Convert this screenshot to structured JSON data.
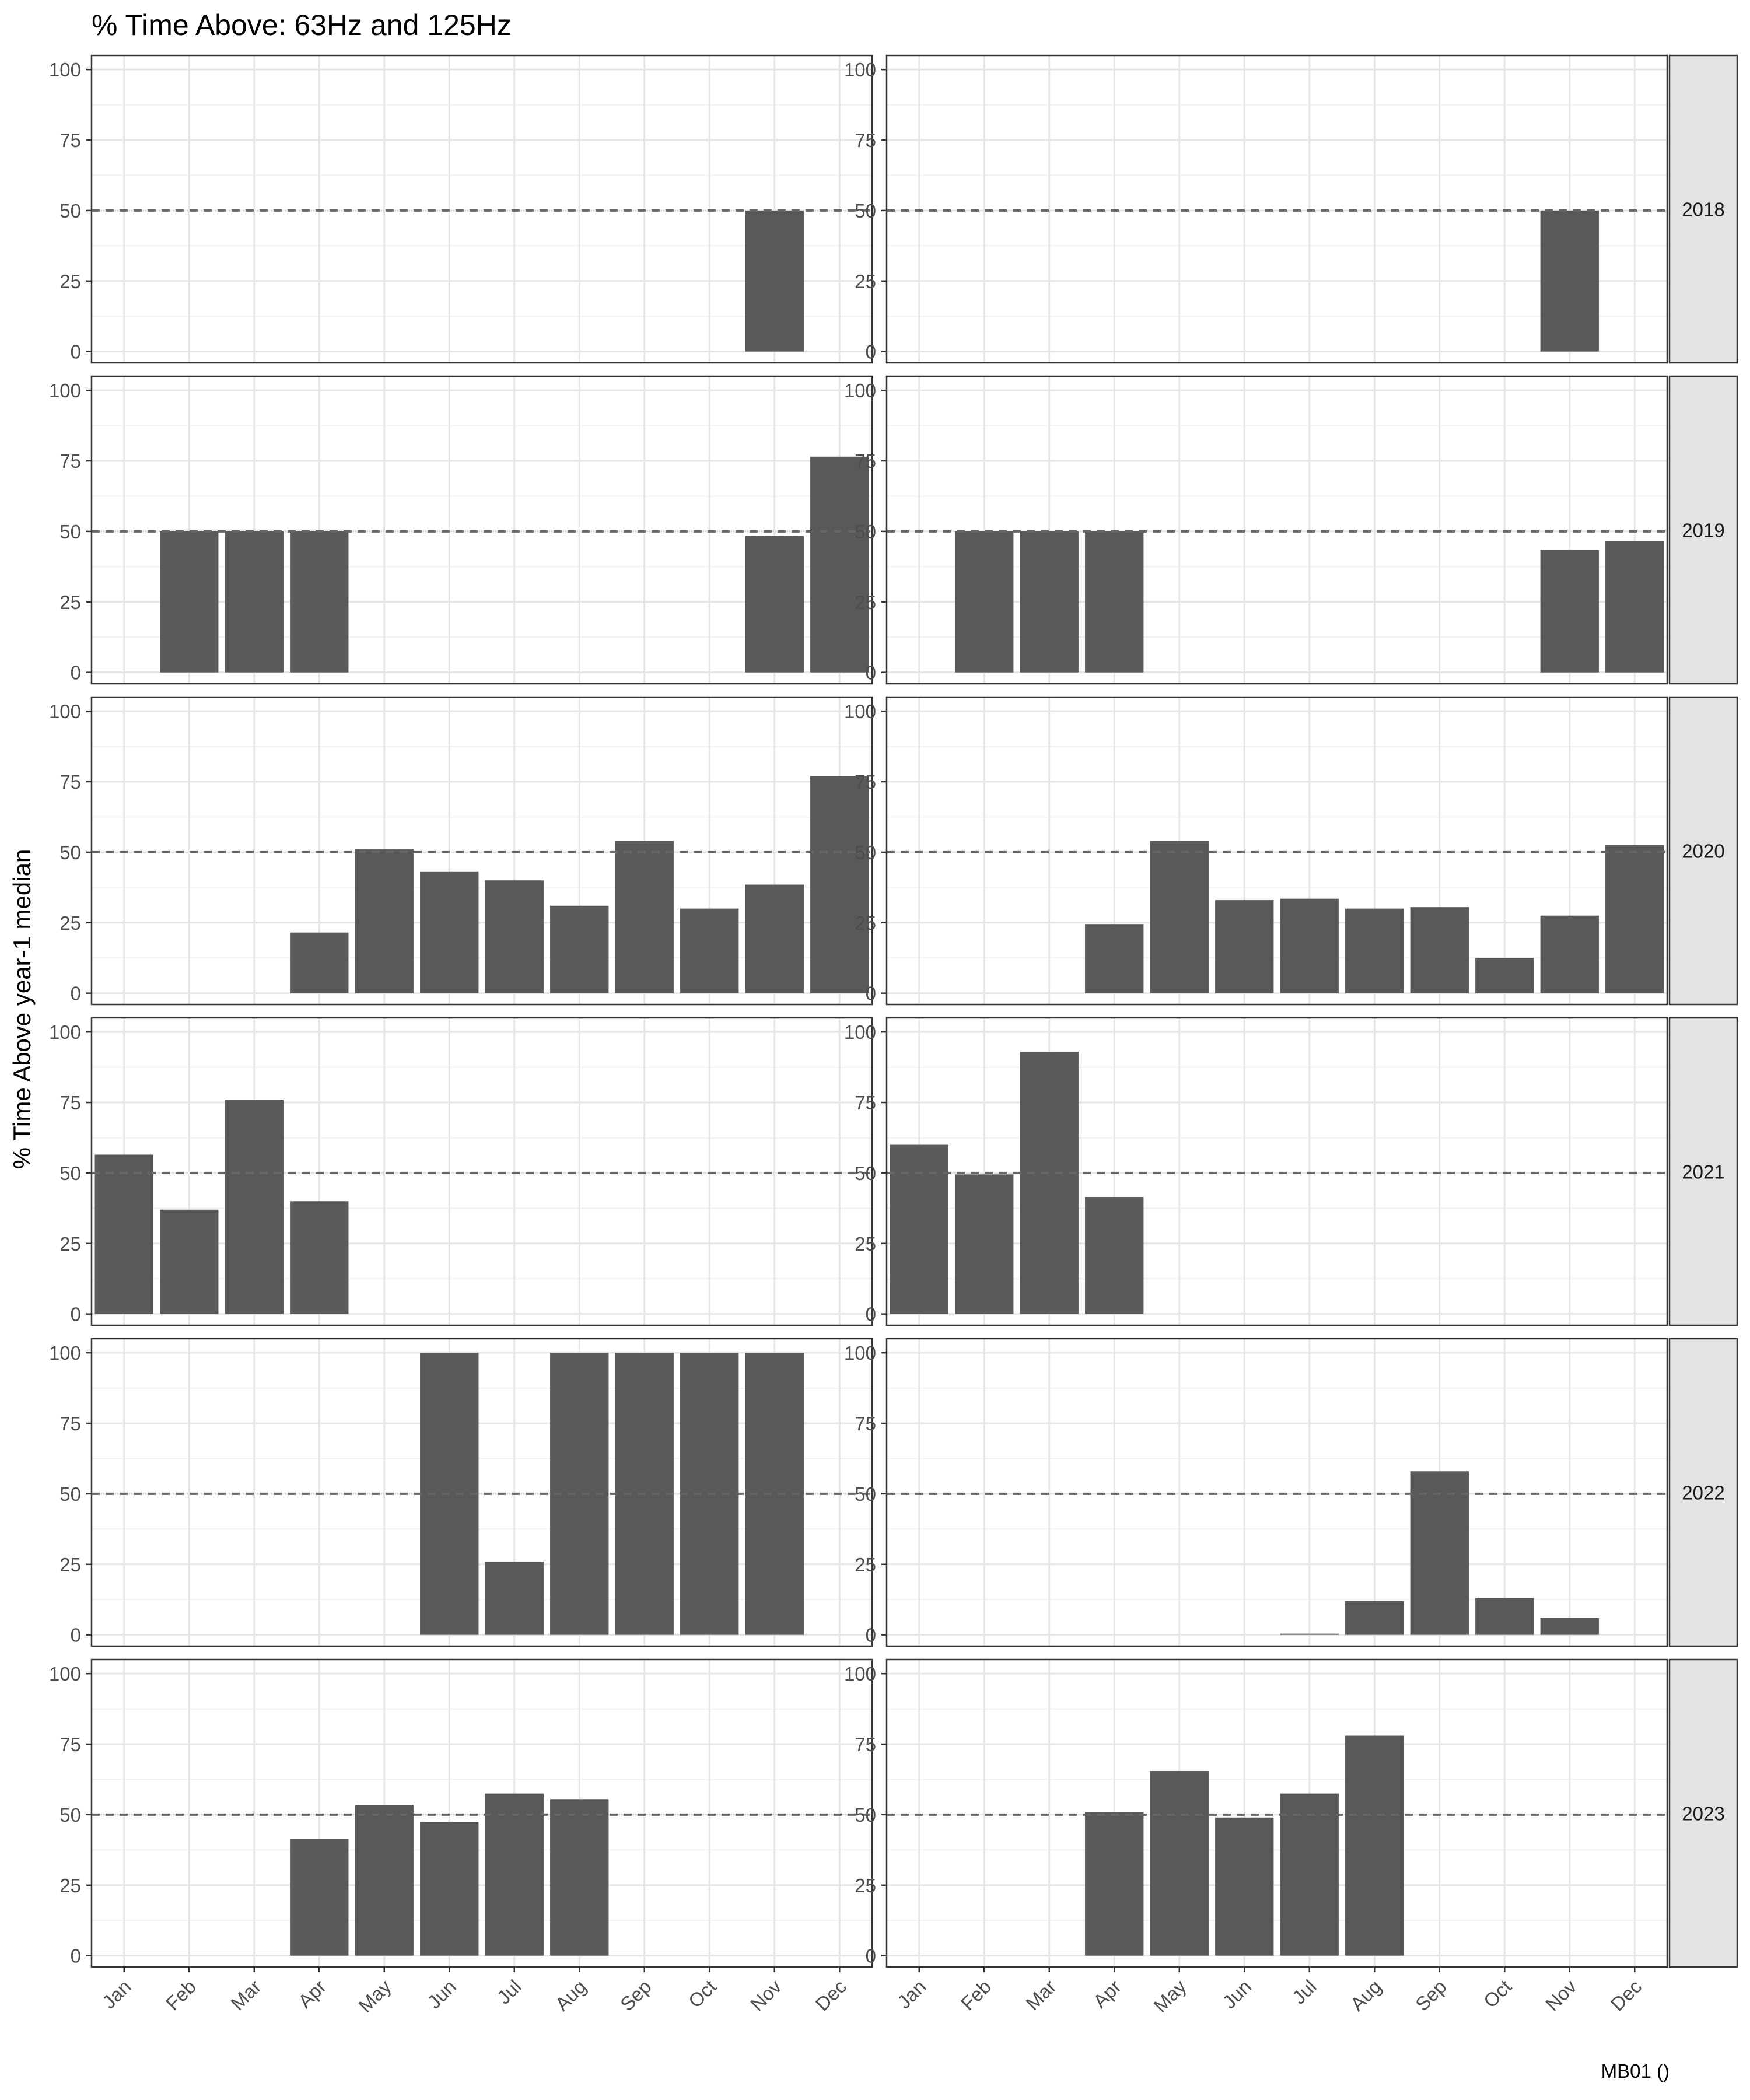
{
  "chart_data": {
    "type": "bar",
    "title": "% Time Above: 63Hz and 125Hz",
    "ylabel": "% Time Above year-1 median",
    "xlabel": "",
    "caption": "MB01 ()",
    "categories": [
      "Jan",
      "Feb",
      "Mar",
      "Apr",
      "May",
      "Jun",
      "Jul",
      "Aug",
      "Sep",
      "Oct",
      "Nov",
      "Dec"
    ],
    "yticks": [
      0,
      25,
      50,
      75,
      100
    ],
    "ylim": [
      -4,
      105
    ],
    "reference_line": 50,
    "grid": true,
    "facet_rows": [
      "2018",
      "2019",
      "2020",
      "2021",
      "2022",
      "2023"
    ],
    "facet_cols": 2,
    "bar_color": "#595959",
    "panels": [
      [
        [
          null,
          null,
          null,
          null,
          null,
          null,
          null,
          null,
          null,
          null,
          50,
          null
        ],
        [
          null,
          null,
          null,
          null,
          null,
          null,
          null,
          null,
          null,
          null,
          50,
          null
        ]
      ],
      [
        [
          null,
          50,
          50,
          50,
          null,
          null,
          null,
          null,
          null,
          null,
          48.5,
          76.5
        ],
        [
          null,
          50,
          50,
          50,
          null,
          null,
          null,
          null,
          null,
          null,
          43.5,
          46.5
        ]
      ],
      [
        [
          null,
          null,
          null,
          21.5,
          51,
          43,
          40,
          31,
          54,
          30,
          38.5,
          77
        ],
        [
          null,
          null,
          null,
          24.5,
          54,
          33,
          33.5,
          30,
          30.5,
          12.5,
          27.5,
          52.5
        ]
      ],
      [
        [
          56.5,
          37,
          76,
          40,
          null,
          null,
          null,
          null,
          null,
          null,
          null,
          null
        ],
        [
          60,
          49.5,
          93,
          41.5,
          null,
          null,
          null,
          null,
          null,
          null,
          null,
          null
        ]
      ],
      [
        [
          null,
          null,
          null,
          null,
          null,
          100,
          26,
          100,
          100,
          100,
          100,
          null
        ],
        [
          null,
          null,
          null,
          null,
          null,
          null,
          0.4,
          12,
          58,
          13,
          6,
          null
        ]
      ],
      [
        [
          null,
          null,
          null,
          41.5,
          53.5,
          47.5,
          57.5,
          55.5,
          null,
          null,
          null,
          null
        ],
        [
          null,
          null,
          null,
          51,
          65.5,
          49,
          57.5,
          78,
          null,
          null,
          null,
          null
        ]
      ]
    ]
  }
}
